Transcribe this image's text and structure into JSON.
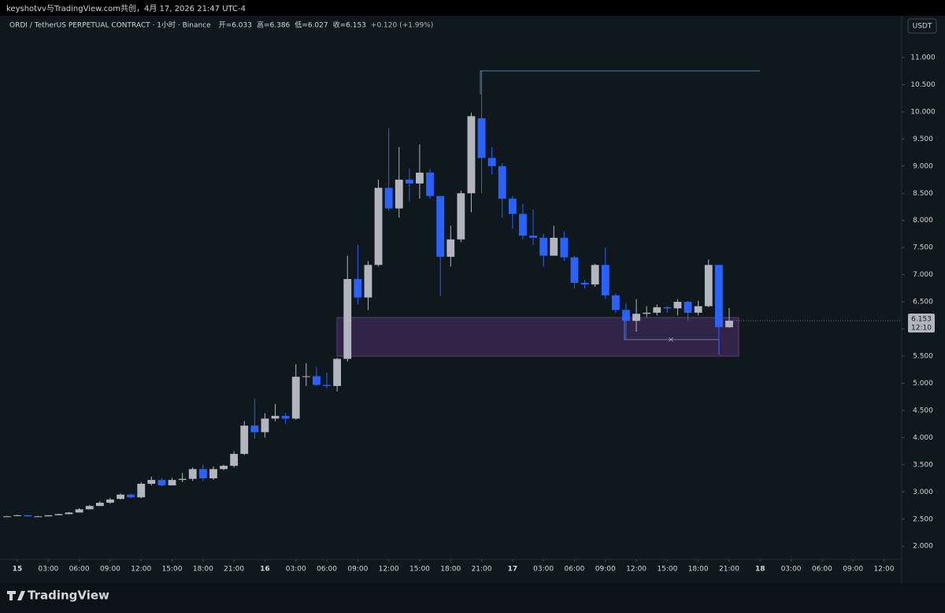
{
  "top_bar": "keyshotvv与TradingView.com共创，4月 17, 2026 21:47 UTC-4",
  "brand": "TradingView",
  "currency_button": "USDT",
  "chart_data": {
    "type": "candlestick",
    "symbol": "ORDI / TetherUS PERPETUAL CONTRACT · 1小时 · Binance",
    "ohlc_labels": [
      "开=6.033",
      "高=6.386",
      "低=6.027",
      "收=6.153"
    ],
    "change": "+0.120 (+1.99%)",
    "last_price_label": "6.153",
    "countdown": "12:10",
    "up_color": "#b2b5be",
    "down_color": "#2962ff",
    "x": [
      -1,
      0,
      1,
      2,
      3,
      4,
      5,
      6,
      7,
      8,
      9,
      10,
      11,
      12,
      13,
      14,
      15,
      16,
      17,
      18,
      19,
      20,
      21,
      22,
      23,
      24,
      25,
      26,
      27,
      28,
      29,
      30,
      31,
      32,
      33,
      34,
      35,
      36,
      37,
      38,
      39,
      40,
      41,
      42,
      43,
      44,
      45,
      46,
      47,
      48,
      49,
      50,
      51,
      52,
      53,
      54,
      55,
      56,
      57,
      58,
      59,
      60,
      61,
      62,
      63,
      64,
      65,
      66,
      67,
      68,
      69
    ],
    "open": [
      2.55,
      2.56,
      2.57,
      2.55,
      2.55,
      2.57,
      2.59,
      2.62,
      2.68,
      2.74,
      2.8,
      2.87,
      2.95,
      2.9,
      3.15,
      3.22,
      3.12,
      3.22,
      3.24,
      3.42,
      3.25,
      3.42,
      3.48,
      3.7,
      4.22,
      4.1,
      4.35,
      4.4,
      4.35,
      5.12,
      5.13,
      4.97,
      4.95,
      5.45,
      6.92,
      6.58,
      7.18,
      8.6,
      8.22,
      8.75,
      8.68,
      8.88,
      8.45,
      7.33,
      7.65,
      8.5,
      9.88,
      9.15,
      9.0,
      8.4,
      8.12,
      7.72,
      7.68,
      7.35,
      7.68,
      7.32,
      6.85,
      6.82,
      7.18,
      6.62,
      6.35,
      6.15,
      6.28,
      6.3,
      6.4,
      6.38,
      6.5,
      6.3,
      6.42,
      7.18,
      6.033
    ],
    "high": [
      2.56,
      2.58,
      2.58,
      2.56,
      2.57,
      2.6,
      2.63,
      2.7,
      2.76,
      2.83,
      2.89,
      2.97,
      2.97,
      3.18,
      3.28,
      3.25,
      3.26,
      3.35,
      3.45,
      3.5,
      3.47,
      3.5,
      3.75,
      4.3,
      4.72,
      4.45,
      4.62,
      4.45,
      5.35,
      5.37,
      5.3,
      5.2,
      5.47,
      7.35,
      7.55,
      7.25,
      8.75,
      9.7,
      9.35,
      8.95,
      9.4,
      8.95,
      8.45,
      7.9,
      8.55,
      9.98,
      10.75,
      9.35,
      9.05,
      8.45,
      8.3,
      8.2,
      7.75,
      7.9,
      7.8,
      7.35,
      6.9,
      7.2,
      7.5,
      6.65,
      6.48,
      6.55,
      6.42,
      6.45,
      6.42,
      6.55,
      6.52,
      6.52,
      7.28,
      7.18,
      6.386
    ],
    "low": [
      2.54,
      2.55,
      2.54,
      2.54,
      2.55,
      2.57,
      2.59,
      2.62,
      2.68,
      2.74,
      2.78,
      2.86,
      2.88,
      2.88,
      3.12,
      3.1,
      3.12,
      3.18,
      3.2,
      3.2,
      3.22,
      3.4,
      3.45,
      3.68,
      3.98,
      4.0,
      4.3,
      4.25,
      4.33,
      4.95,
      4.95,
      4.9,
      4.85,
      5.4,
      6.45,
      6.35,
      7.15,
      8.18,
      8.05,
      8.35,
      8.4,
      8.4,
      6.6,
      7.15,
      7.6,
      8.15,
      8.5,
      8.85,
      8.05,
      7.85,
      7.65,
      7.55,
      7.15,
      7.35,
      7.25,
      6.75,
      6.75,
      6.78,
      6.55,
      6.3,
      5.82,
      5.95,
      6.22,
      6.25,
      6.3,
      6.25,
      6.15,
      6.25,
      6.4,
      5.55,
      6.027
    ],
    "close": [
      2.55,
      2.57,
      2.55,
      2.55,
      2.57,
      2.59,
      2.62,
      2.68,
      2.74,
      2.8,
      2.86,
      2.95,
      2.9,
      3.15,
      3.22,
      3.12,
      3.22,
      3.24,
      3.42,
      3.25,
      3.42,
      3.48,
      3.7,
      4.22,
      4.1,
      4.35,
      4.4,
      4.35,
      5.12,
      5.13,
      4.97,
      4.95,
      5.45,
      6.92,
      6.58,
      7.18,
      8.6,
      8.22,
      8.75,
      8.68,
      8.88,
      8.45,
      7.33,
      7.65,
      8.5,
      9.92,
      9.15,
      9.0,
      8.4,
      8.12,
      7.72,
      7.68,
      7.35,
      7.68,
      7.32,
      6.85,
      6.82,
      7.18,
      6.62,
      6.35,
      6.15,
      6.28,
      6.3,
      6.4,
      6.38,
      6.5,
      6.3,
      6.42,
      7.18,
      6.033,
      6.153
    ],
    "xlim": [
      -1.07,
      85.72
    ],
    "xticks": [
      {
        "value": 0,
        "label": "15"
      },
      {
        "value": 3,
        "label": "03:00"
      },
      {
        "value": 6,
        "label": "06:00"
      },
      {
        "value": 9,
        "label": "09:00"
      },
      {
        "value": 12,
        "label": "12:00"
      },
      {
        "value": 15,
        "label": "15:00"
      },
      {
        "value": 18,
        "label": "18:00"
      },
      {
        "value": 21,
        "label": "21:00"
      },
      {
        "value": 24,
        "label": "16"
      },
      {
        "value": 27,
        "label": "03:00"
      },
      {
        "value": 30,
        "label": "06:00"
      },
      {
        "value": 33,
        "label": "09:00"
      },
      {
        "value": 36,
        "label": "12:00"
      },
      {
        "value": 39,
        "label": "15:00"
      },
      {
        "value": 42,
        "label": "18:00"
      },
      {
        "value": 45,
        "label": "21:00"
      },
      {
        "value": 48,
        "label": "17"
      },
      {
        "value": 51,
        "label": "03:00"
      },
      {
        "value": 54,
        "label": "06:00"
      },
      {
        "value": 57,
        "label": "09:00"
      },
      {
        "value": 60,
        "label": "12:00"
      },
      {
        "value": 63,
        "label": "15:00"
      },
      {
        "value": 66,
        "label": "18:00"
      },
      {
        "value": 69,
        "label": "21:00"
      },
      {
        "value": 72,
        "label": "18"
      },
      {
        "value": 75,
        "label": "03:00"
      },
      {
        "value": 78,
        "label": "06:00"
      },
      {
        "value": 81,
        "label": "09:00"
      },
      {
        "value": 84,
        "label": "12:00"
      }
    ],
    "ylim": [
      1.35,
      11.74
    ],
    "yticks": [
      {
        "value": 2,
        "label": "2.000"
      },
      {
        "value": 2.5,
        "label": "2.500"
      },
      {
        "value": 3,
        "label": "3.000"
      },
      {
        "value": 3.5,
        "label": "3.500"
      },
      {
        "value": 4,
        "label": "4.000"
      },
      {
        "value": 4.5,
        "label": "4.500"
      },
      {
        "value": 5,
        "label": "5.000"
      },
      {
        "value": 5.5,
        "label": "5.500"
      },
      {
        "value": 6,
        "label": "6.000"
      },
      {
        "value": 6.5,
        "label": "6.500"
      },
      {
        "value": 7,
        "label": "7.000"
      },
      {
        "value": 7.5,
        "label": "7.500"
      },
      {
        "value": 8,
        "label": "8.000"
      },
      {
        "value": 8.5,
        "label": "8.500"
      },
      {
        "value": 9,
        "label": "9.000"
      },
      {
        "value": 9.5,
        "label": "9.500"
      },
      {
        "value": 10,
        "label": "10.000"
      },
      {
        "value": 10.5,
        "label": "10.500"
      },
      {
        "value": 11,
        "label": "11.000"
      }
    ]
  }
}
